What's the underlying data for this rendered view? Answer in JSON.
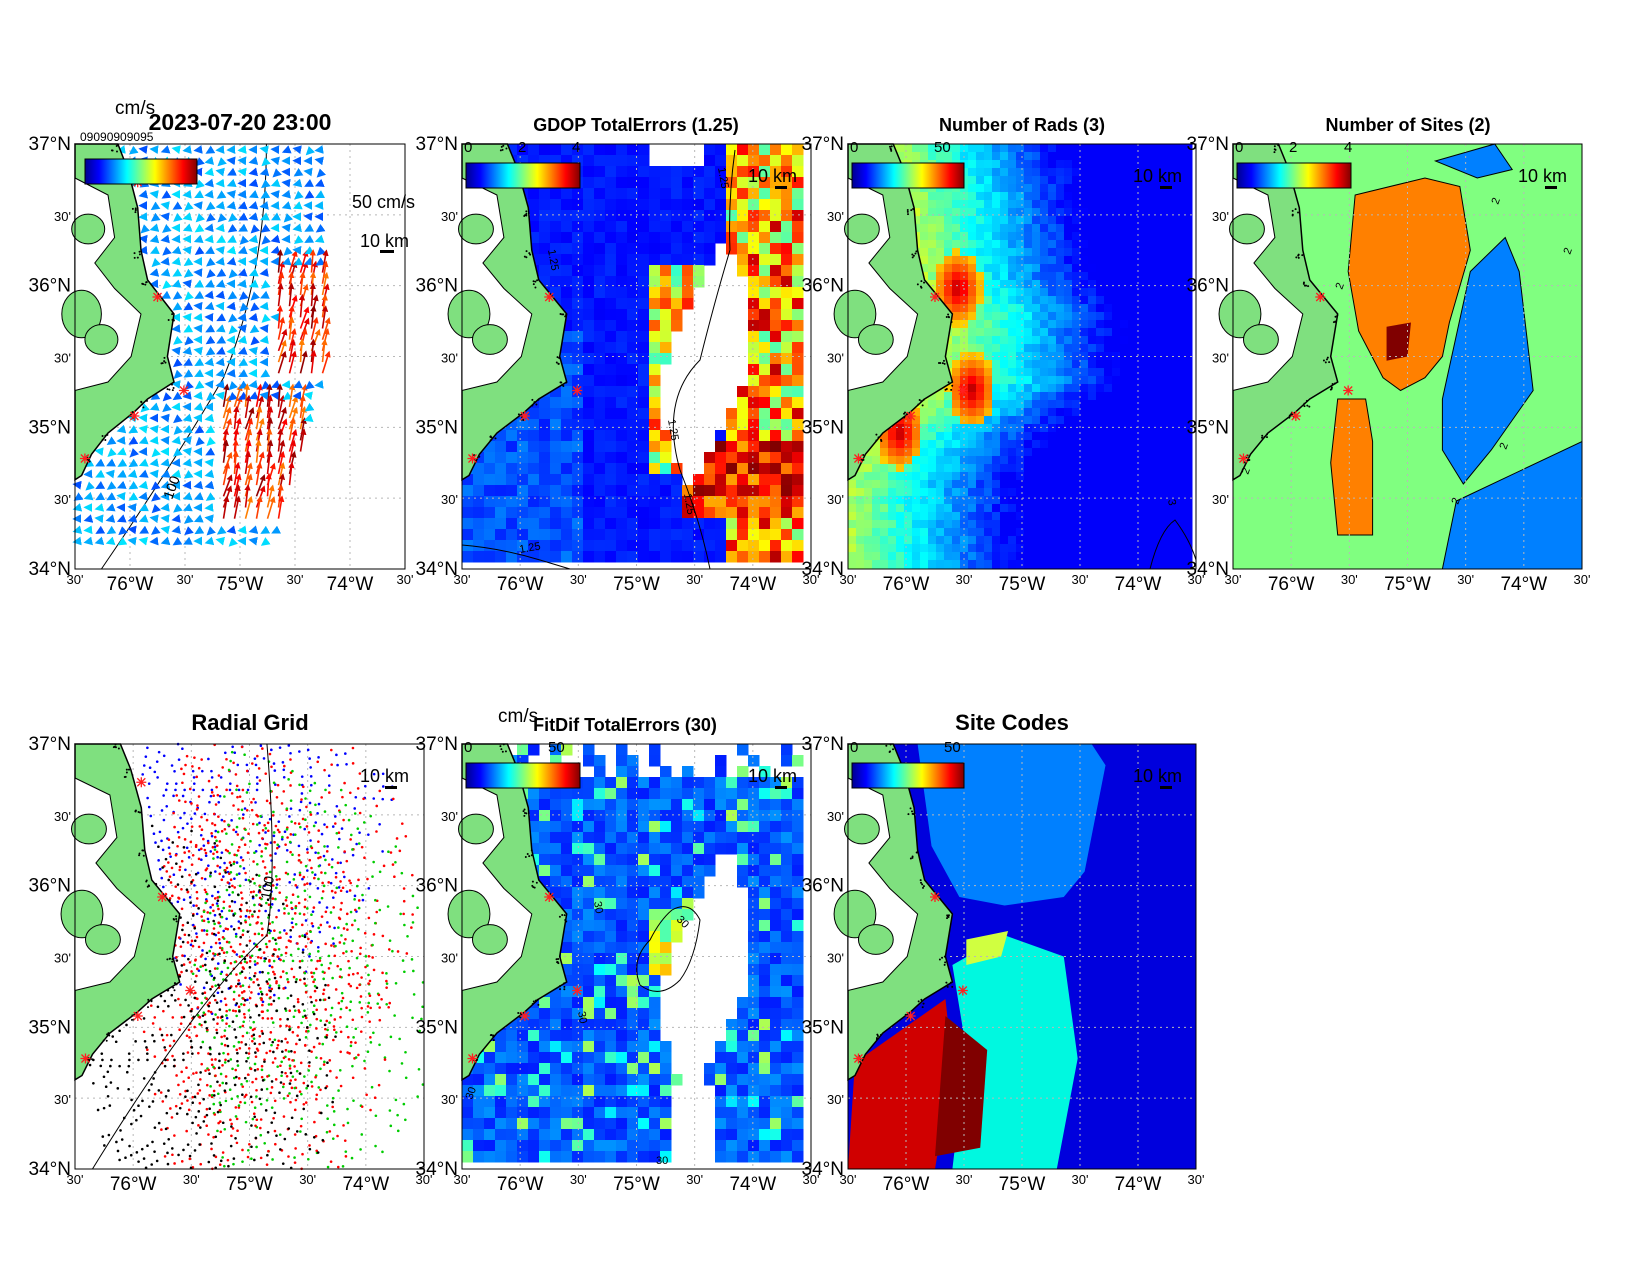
{
  "figure": {
    "colors": {
      "land": "#7fe07f",
      "site_marker": "#ff2020",
      "ocean_blank": "#ffffff",
      "jet_low": "#00008f",
      "jet_high": "#800000"
    }
  },
  "panels": [
    {
      "id": "surface-currents",
      "title": "2023-07-20 23:00",
      "colorbar": {
        "units": "cm/s",
        "overlay_text": "09090909095"
      },
      "scale_vector": "50 cm/s",
      "scale_bar": "10 km",
      "contour": "100",
      "lat_ticks": [
        "37°N",
        "30'",
        "36°N",
        "30'",
        "35°N",
        "30'",
        "34°N"
      ],
      "lon_ticks": [
        "30'",
        "76°W",
        "30'",
        "75°W",
        "30'",
        "74°W",
        "30'"
      ],
      "icons": [
        "quiver-arrows-icon",
        "site-marker-icon"
      ]
    },
    {
      "id": "gdop-total-errors",
      "title": "GDOP TotalErrors (1.25)",
      "colorbar": {
        "ticks": [
          "0",
          "2",
          "4"
        ]
      },
      "scale_bar": "10 km",
      "contours": [
        "1.25",
        "1.25",
        "1.25",
        "1.25",
        "1.25"
      ],
      "lat_ticks": [
        "37°N",
        "30'",
        "36°N",
        "30'",
        "35°N",
        "30'",
        "34°N"
      ],
      "lon_ticks": [
        "30'",
        "76°W",
        "30'",
        "75°W",
        "30'",
        "74°W",
        "30'"
      ]
    },
    {
      "id": "number-of-rads",
      "title": "Number of Rads (3)",
      "colorbar": {
        "ticks": [
          "0",
          "50"
        ]
      },
      "scale_bar": "10 km",
      "contours": [
        "3"
      ],
      "lat_ticks": [
        "37°N",
        "30'",
        "36°N",
        "30'",
        "35°N",
        "30'",
        "34°N"
      ],
      "lon_ticks": [
        "30'",
        "76°W",
        "30'",
        "75°W",
        "30'",
        "74°W",
        "30'"
      ]
    },
    {
      "id": "number-of-sites",
      "title": "Number of Sites (2)",
      "colorbar": {
        "ticks": [
          "0",
          "2",
          "4"
        ]
      },
      "scale_bar": "10 km",
      "contours": [
        "2",
        "2",
        "2",
        "2",
        "2",
        "2"
      ],
      "lat_ticks": [
        "37°N",
        "30'",
        "36°N",
        "30'",
        "35°N",
        "30'",
        "34°N"
      ],
      "lon_ticks": [
        "30'",
        "76°W",
        "30'",
        "75°W",
        "30'",
        "74°W",
        "30'"
      ]
    },
    {
      "id": "radial-grid",
      "title": "Radial Grid",
      "scale_bar": "10 km",
      "contour": "100",
      "lat_ticks": [
        "37°N",
        "30'",
        "36°N",
        "30'",
        "35°N",
        "30'",
        "34°N"
      ],
      "lon_ticks": [
        "30'",
        "76°W",
        "30'",
        "75°W",
        "30'",
        "74°W",
        "30'"
      ],
      "site_colors": [
        "#0000ff",
        "#ff0000",
        "#00cc00",
        "#ff0000",
        "#000000"
      ]
    },
    {
      "id": "fitdif-total-errors",
      "title": "FitDif TotalErrors (30)",
      "colorbar": {
        "units": "cm/s",
        "ticks": [
          "0",
          "50"
        ]
      },
      "scale_bar": "10 km",
      "contours": [
        "30",
        "30",
        "30",
        "30",
        "30"
      ],
      "lat_ticks": [
        "37°N",
        "30'",
        "36°N",
        "30'",
        "35°N",
        "30'",
        "34°N"
      ],
      "lon_ticks": [
        "30'",
        "76°W",
        "30'",
        "75°W",
        "30'",
        "74°W",
        "30'"
      ]
    },
    {
      "id": "site-codes",
      "title": "Site Codes",
      "colorbar": {
        "ticks": [
          "0",
          "50"
        ]
      },
      "scale_bar": "10 km",
      "lat_ticks": [
        "37°N",
        "30'",
        "36°N",
        "30'",
        "35°N",
        "30'",
        "34°N"
      ],
      "lon_ticks": [
        "30'",
        "76°W",
        "30'",
        "75°W",
        "30'",
        "74°W",
        "30'"
      ]
    }
  ]
}
